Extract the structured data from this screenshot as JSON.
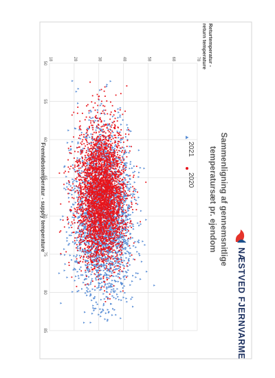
{
  "logo": {
    "text": "NÆSTVED FJERNVARME",
    "mark_color": "#e5332a",
    "mark_color_2": "#1b4f8a"
  },
  "chart_data": {
    "type": "scatter",
    "orientation": "rotated-90-clockwise",
    "title": "Sammenligning af gennemsnitlige temperatursæt pr. ejendom",
    "xlabel": "Fremløbstemperatur - supply temperature",
    "ylabel": "Returtemperatur - return temperature",
    "xlim": [
      50,
      85
    ],
    "ylim": [
      18,
      78
    ],
    "xticks": [
      50,
      55,
      60,
      65,
      70,
      75,
      80,
      85
    ],
    "yticks": [
      18,
      28,
      38,
      48,
      58,
      68,
      78
    ],
    "grid": true,
    "legend_placement": "inside-center",
    "series": [
      {
        "name": "2021",
        "color": "#5b8fd6",
        "marker": "triangle",
        "center": [
          70,
          40
        ],
        "spread": [
          5.5,
          6.0
        ],
        "x_range": [
          52,
          84
        ],
        "y_range": [
          20,
          68
        ]
      },
      {
        "name": "2020",
        "color": "#e8141b",
        "marker": "circle",
        "center": [
          67.5,
          39
        ],
        "spread": [
          4.5,
          4.8
        ],
        "x_range": [
          52,
          82
        ],
        "y_range": [
          20,
          62
        ]
      }
    ]
  }
}
